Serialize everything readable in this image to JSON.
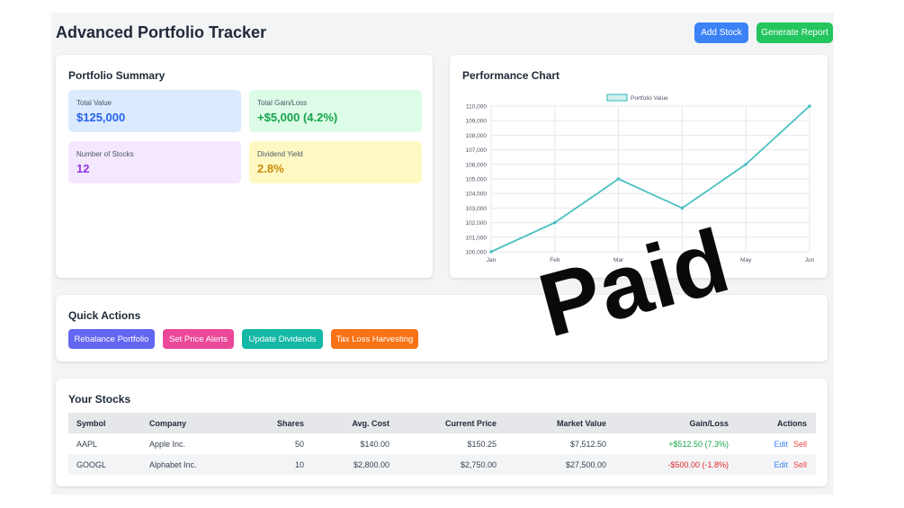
{
  "header": {
    "title": "Advanced Portfolio Tracker",
    "add_stock_label": "Add Stock",
    "generate_report_label": "Generate Report"
  },
  "summary": {
    "title": "Portfolio Summary",
    "stats": [
      {
        "label": "Total Value",
        "value": "$125,000"
      },
      {
        "label": "Total Gain/Loss",
        "value": "+$5,000 (4.2%)"
      },
      {
        "label": "Number of Stocks",
        "value": "12"
      },
      {
        "label": "Dividend Yield",
        "value": "2.8%"
      }
    ]
  },
  "performance": {
    "title": "Performance Chart"
  },
  "chart_data": {
    "type": "line",
    "x": [
      "Jan",
      "Feb",
      "Mar",
      "Apr",
      "May",
      "Jun"
    ],
    "series": [
      {
        "name": "Portfolio Value",
        "values": [
          100000,
          102000,
          105000,
          103000,
          106000,
          110000
        ]
      }
    ],
    "y_ticks": [
      "100,000",
      "101,000",
      "102,000",
      "103,000",
      "104,000",
      "105,000",
      "106,000",
      "107,000",
      "108,000",
      "109,000",
      "110,000"
    ],
    "ylim": [
      100000,
      110000
    ],
    "grid": true,
    "legend": "top",
    "line_color": "#4bc0c0"
  },
  "quick_actions": {
    "title": "Quick Actions",
    "buttons": [
      "Rebalance Portfolio",
      "Set Price Alerts",
      "Update Dividends",
      "Tax Loss Harvesting"
    ]
  },
  "stocks": {
    "title": "Your Stocks",
    "columns": [
      "Symbol",
      "Company",
      "Shares",
      "Avg. Cost",
      "Current Price",
      "Market Value",
      "Gain/Loss",
      "Actions"
    ],
    "rows": [
      {
        "symbol": "AAPL",
        "company": "Apple Inc.",
        "shares": "50",
        "avg_cost": "$140.00",
        "current_price": "$150.25",
        "market_value": "$7,512.50",
        "gain_loss": "+$512.50 (7.3%)"
      },
      {
        "symbol": "GOOGL",
        "company": "Alphabet Inc.",
        "shares": "10",
        "avg_cost": "$2,800.00",
        "current_price": "$2,750.00",
        "market_value": "$27,500.00",
        "gain_loss": "-$500.00 (-1.8%)"
      }
    ],
    "edit_label": "Edit",
    "sell_label": "Sell"
  },
  "overlay": {
    "stamp_text": "Paid"
  },
  "colors": {
    "positive": "#16a34a",
    "negative": "#dc2626",
    "accent": "#3b82f6"
  }
}
